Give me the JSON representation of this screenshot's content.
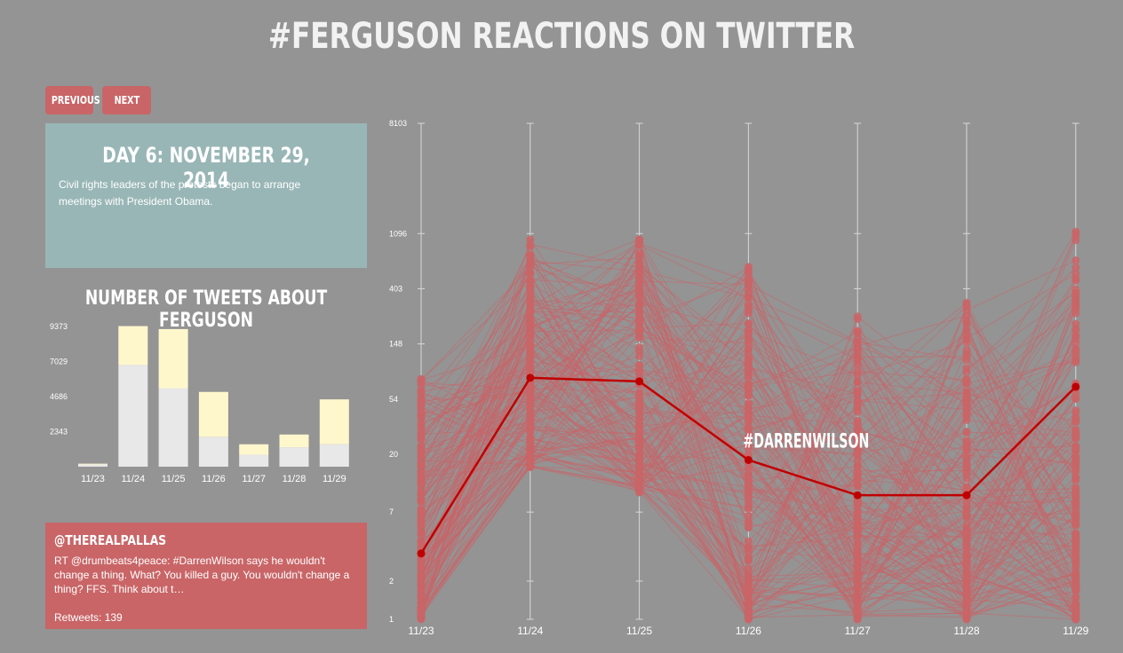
{
  "title": "#FERGUSON REACTIONS ON TWITTER",
  "nav": {
    "previous_label": "PREVIOUS",
    "next_label": "NEXT"
  },
  "day": {
    "title": "DAY 6: NOVEMBER 29, 2014",
    "description": "Civil rights leaders of the protests began to arrange meetings with President Obama."
  },
  "colors": {
    "background": "#949494",
    "accent": "#c96567",
    "highlight": "#c00000",
    "day_box": "#99b6b6",
    "bar_tweets": "#e8e8e8",
    "bar_retweets": "#fff7cc"
  },
  "tweet": {
    "user": "@THEREALPALLAS",
    "text": "RT @drumbeats4peace: #DarrenWilson says he wouldn't change a thing. What? You killed a guy. You wouldn't change a thing? FFS. Think about t…",
    "retweets_label": "Retweets: 139"
  },
  "chart_data": [
    {
      "type": "bar",
      "title": "NUMBER OF TWEETS ABOUT FERGUSON",
      "categories": [
        "11/23",
        "11/24",
        "11/25",
        "11/26",
        "11/27",
        "11/28",
        "11/29"
      ],
      "y_ticks": [
        "2343",
        "4686",
        "7029",
        "9373"
      ],
      "ylim": [
        0,
        9373
      ],
      "stacked": true,
      "series": [
        {
          "values": [
            150,
            6800,
            5250,
            2000,
            800,
            1300,
            1500
          ]
        },
        {
          "values": [
            50,
            2600,
            3950,
            3000,
            700,
            850,
            3000
          ]
        }
      ]
    },
    {
      "type": "line",
      "scale": "log",
      "x": [
        "11/23",
        "11/24",
        "11/25",
        "11/26",
        "11/27",
        "11/28",
        "11/29"
      ],
      "y_ticks": [
        "1",
        "2",
        "7",
        "20",
        "54",
        "148",
        "403",
        "1096",
        "8103"
      ],
      "ylim": [
        1,
        8103
      ],
      "highlight": {
        "name": "#DARRENWILSON",
        "values": [
          3.3,
          80,
          75,
          18,
          9.5,
          9.5,
          68
        ]
      }
    }
  ]
}
